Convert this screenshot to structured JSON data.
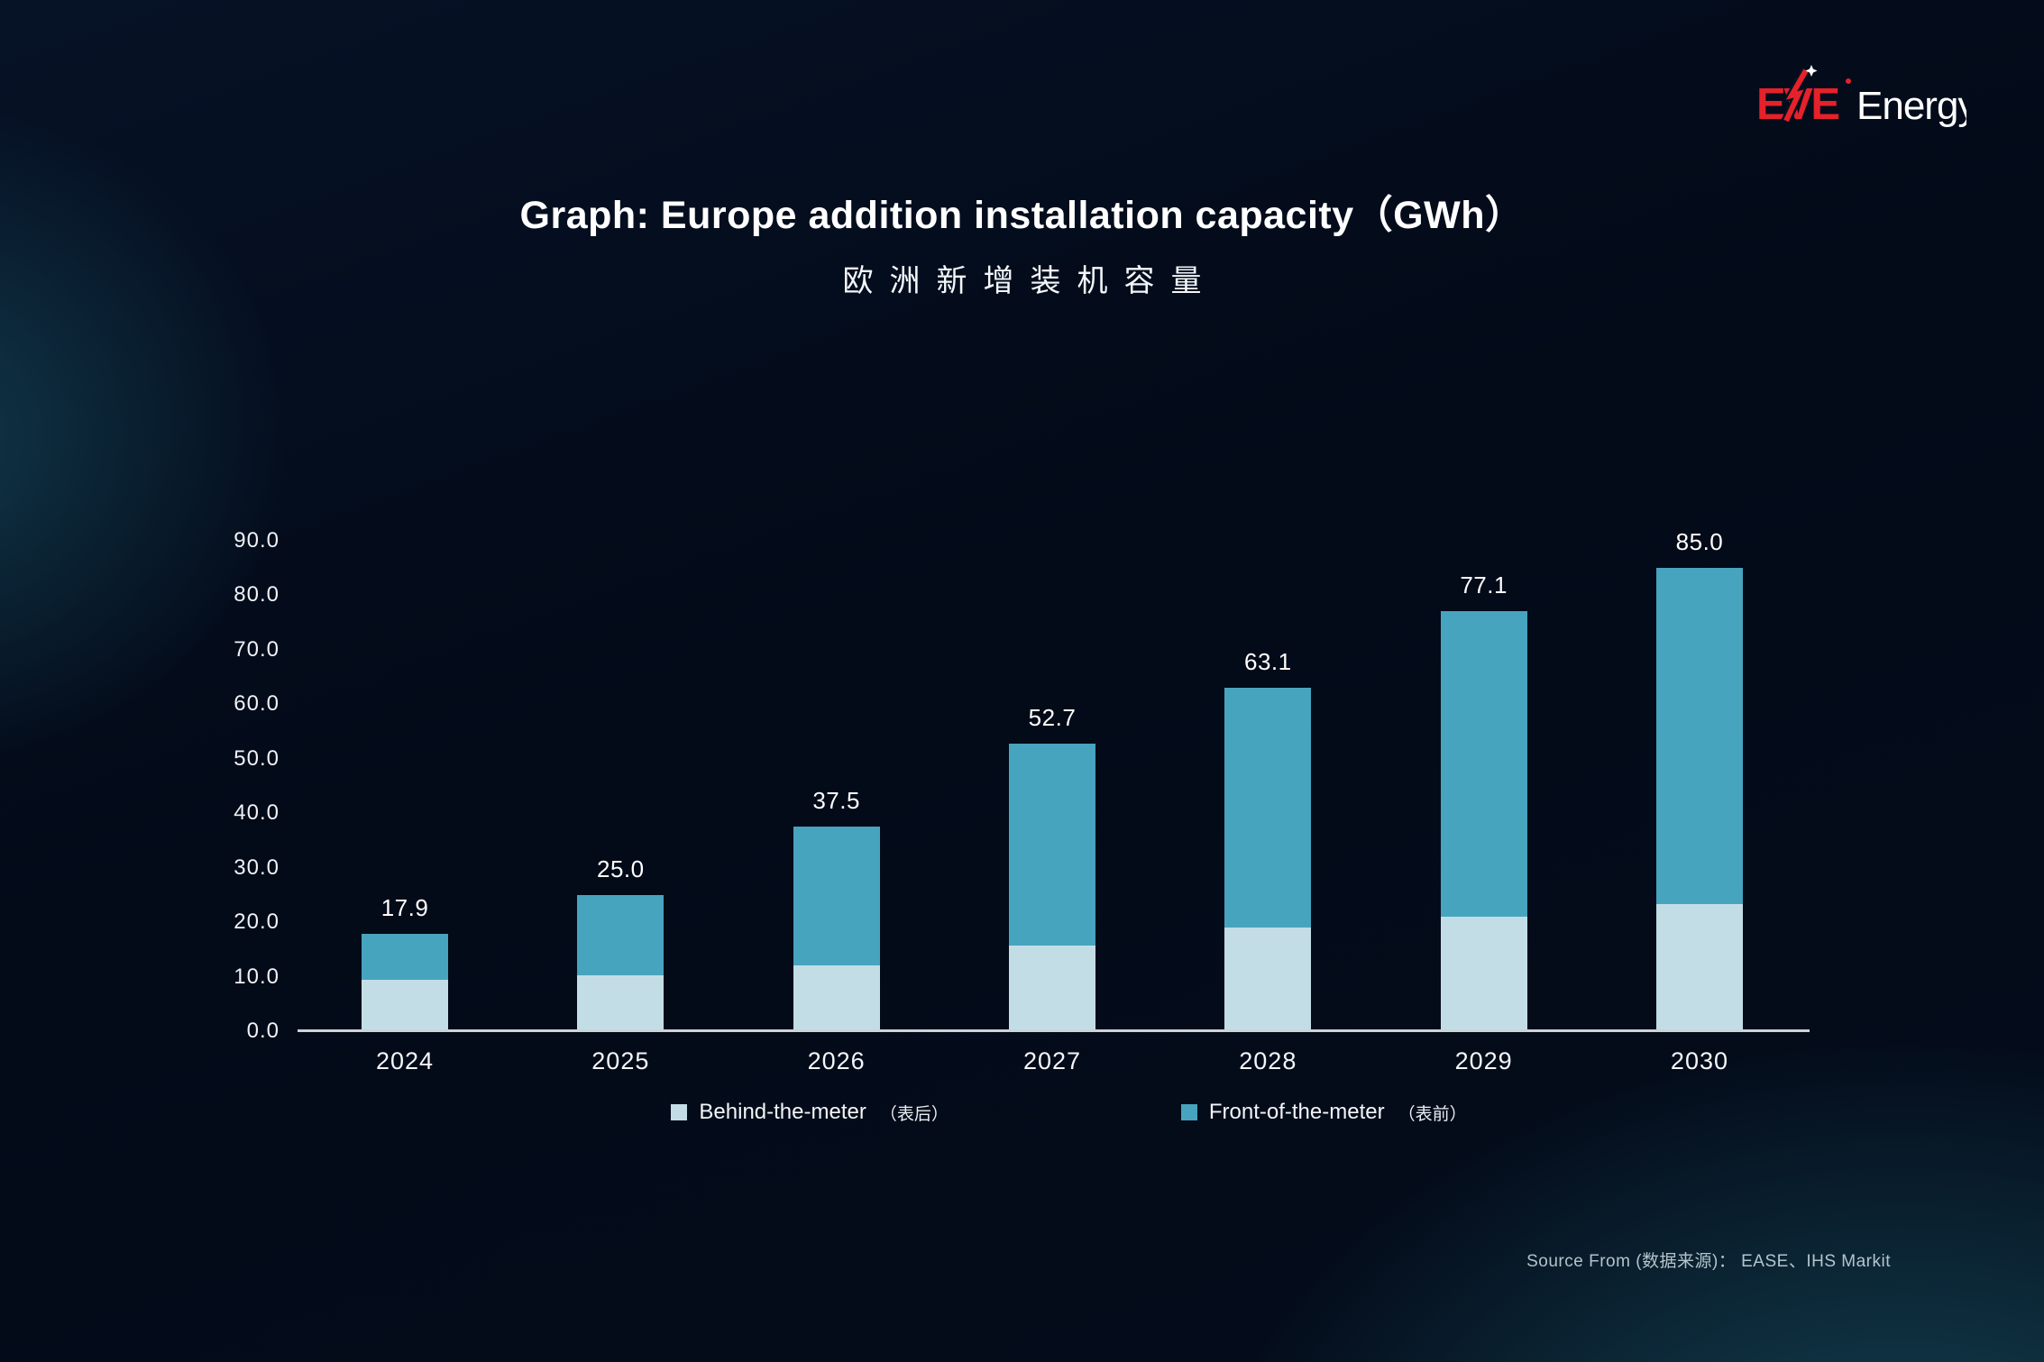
{
  "logo": {
    "brand": "EVE",
    "brand_suffix": "Energy"
  },
  "header": {
    "title": "Graph: Europe addition installation capacity（GWh）",
    "subtitle": "欧洲新增装机容量"
  },
  "chart_data": {
    "type": "bar",
    "stacked": true,
    "title": "Graph: Europe addition installation capacity (GWh)",
    "subtitle_cn": "欧洲新增装机容量",
    "categories": [
      "2024",
      "2025",
      "2026",
      "2027",
      "2028",
      "2029",
      "2030"
    ],
    "series": [
      {
        "name": "Behind-the-meter（表后）",
        "color": "#c3dde6",
        "values": [
          9.5,
          10.2,
          12.0,
          15.8,
          19.0,
          21.0,
          23.4
        ]
      },
      {
        "name": "Front-of-the-meter（表前）",
        "color": "#47a4be",
        "values": [
          8.4,
          14.8,
          25.5,
          36.9,
          44.1,
          56.1,
          61.6
        ]
      }
    ],
    "totals": [
      17.9,
      25.0,
      37.5,
      52.7,
      63.1,
      77.1,
      85.0
    ],
    "total_labels": [
      "17.9",
      "25.0",
      "37.5",
      "52.7",
      "63.1",
      "77.1",
      "85.0"
    ],
    "ylabel": "GWh",
    "ylim": [
      0,
      90
    ],
    "ytick_step": 10,
    "ytick_labels": [
      "0.0",
      "10.0",
      "20.0",
      "30.0",
      "40.0",
      "50.0",
      "60.0",
      "70.0",
      "80.0",
      "90.0"
    ],
    "grid": false,
    "legend_position": "bottom"
  },
  "legend": {
    "items": [
      {
        "label": "Behind-the-meter",
        "label_cn": "（表后）",
        "color": "#c3dde6"
      },
      {
        "label": "Front-of-the-meter",
        "label_cn": "（表前）",
        "color": "#47a4be"
      }
    ]
  },
  "footer": {
    "source": "Source From (数据来源)： EASE、IHS Markit"
  },
  "colors": {
    "background": "#030a18",
    "bar_front_of_meter": "#47a4be",
    "bar_behind_meter": "#c3dde6",
    "brand_red": "#e62129",
    "axis_line": "#ccd3d9",
    "text": "#ffffff"
  }
}
